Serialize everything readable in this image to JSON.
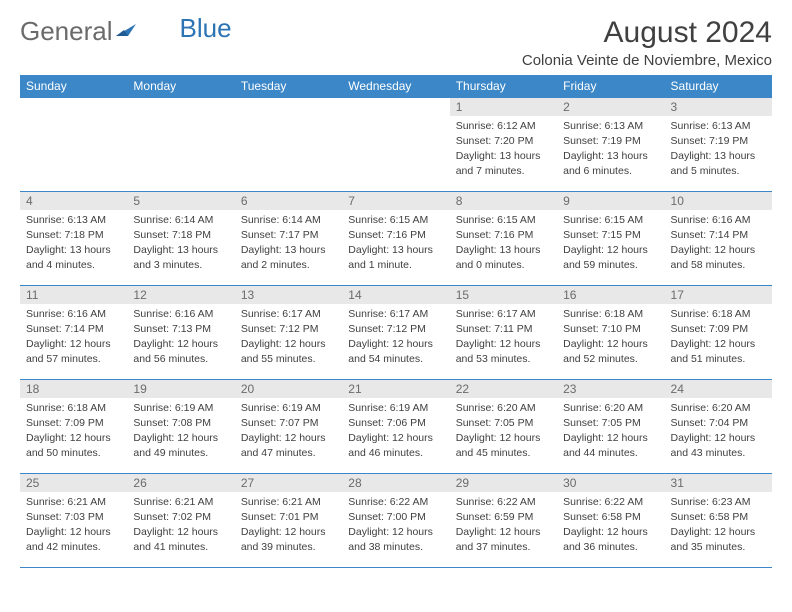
{
  "brand": {
    "part1": "General",
    "part2": "Blue"
  },
  "title": "August 2024",
  "location": "Colonia Veinte de Noviembre, Mexico",
  "colors": {
    "header_bg": "#3b87c8",
    "header_text": "#ffffff",
    "grid_border": "#3b87c8",
    "daynum_bg": "#e8e8e8",
    "daynum_text": "#6b6b6b",
    "body_text": "#404040",
    "brand_gray": "#6b6b6b",
    "brand_blue": "#2d74b5",
    "page_bg": "#ffffff"
  },
  "weekdays": [
    "Sunday",
    "Monday",
    "Tuesday",
    "Wednesday",
    "Thursday",
    "Friday",
    "Saturday"
  ],
  "cells": [
    [
      null,
      null,
      null,
      null,
      {
        "n": "1",
        "sr": "6:12 AM",
        "ss": "7:20 PM",
        "dl": "13 hours and 7 minutes."
      },
      {
        "n": "2",
        "sr": "6:13 AM",
        "ss": "7:19 PM",
        "dl": "13 hours and 6 minutes."
      },
      {
        "n": "3",
        "sr": "6:13 AM",
        "ss": "7:19 PM",
        "dl": "13 hours and 5 minutes."
      }
    ],
    [
      {
        "n": "4",
        "sr": "6:13 AM",
        "ss": "7:18 PM",
        "dl": "13 hours and 4 minutes."
      },
      {
        "n": "5",
        "sr": "6:14 AM",
        "ss": "7:18 PM",
        "dl": "13 hours and 3 minutes."
      },
      {
        "n": "6",
        "sr": "6:14 AM",
        "ss": "7:17 PM",
        "dl": "13 hours and 2 minutes."
      },
      {
        "n": "7",
        "sr": "6:15 AM",
        "ss": "7:16 PM",
        "dl": "13 hours and 1 minute."
      },
      {
        "n": "8",
        "sr": "6:15 AM",
        "ss": "7:16 PM",
        "dl": "13 hours and 0 minutes."
      },
      {
        "n": "9",
        "sr": "6:15 AM",
        "ss": "7:15 PM",
        "dl": "12 hours and 59 minutes."
      },
      {
        "n": "10",
        "sr": "6:16 AM",
        "ss": "7:14 PM",
        "dl": "12 hours and 58 minutes."
      }
    ],
    [
      {
        "n": "11",
        "sr": "6:16 AM",
        "ss": "7:14 PM",
        "dl": "12 hours and 57 minutes."
      },
      {
        "n": "12",
        "sr": "6:16 AM",
        "ss": "7:13 PM",
        "dl": "12 hours and 56 minutes."
      },
      {
        "n": "13",
        "sr": "6:17 AM",
        "ss": "7:12 PM",
        "dl": "12 hours and 55 minutes."
      },
      {
        "n": "14",
        "sr": "6:17 AM",
        "ss": "7:12 PM",
        "dl": "12 hours and 54 minutes."
      },
      {
        "n": "15",
        "sr": "6:17 AM",
        "ss": "7:11 PM",
        "dl": "12 hours and 53 minutes."
      },
      {
        "n": "16",
        "sr": "6:18 AM",
        "ss": "7:10 PM",
        "dl": "12 hours and 52 minutes."
      },
      {
        "n": "17",
        "sr": "6:18 AM",
        "ss": "7:09 PM",
        "dl": "12 hours and 51 minutes."
      }
    ],
    [
      {
        "n": "18",
        "sr": "6:18 AM",
        "ss": "7:09 PM",
        "dl": "12 hours and 50 minutes."
      },
      {
        "n": "19",
        "sr": "6:19 AM",
        "ss": "7:08 PM",
        "dl": "12 hours and 49 minutes."
      },
      {
        "n": "20",
        "sr": "6:19 AM",
        "ss": "7:07 PM",
        "dl": "12 hours and 47 minutes."
      },
      {
        "n": "21",
        "sr": "6:19 AM",
        "ss": "7:06 PM",
        "dl": "12 hours and 46 minutes."
      },
      {
        "n": "22",
        "sr": "6:20 AM",
        "ss": "7:05 PM",
        "dl": "12 hours and 45 minutes."
      },
      {
        "n": "23",
        "sr": "6:20 AM",
        "ss": "7:05 PM",
        "dl": "12 hours and 44 minutes."
      },
      {
        "n": "24",
        "sr": "6:20 AM",
        "ss": "7:04 PM",
        "dl": "12 hours and 43 minutes."
      }
    ],
    [
      {
        "n": "25",
        "sr": "6:21 AM",
        "ss": "7:03 PM",
        "dl": "12 hours and 42 minutes."
      },
      {
        "n": "26",
        "sr": "6:21 AM",
        "ss": "7:02 PM",
        "dl": "12 hours and 41 minutes."
      },
      {
        "n": "27",
        "sr": "6:21 AM",
        "ss": "7:01 PM",
        "dl": "12 hours and 39 minutes."
      },
      {
        "n": "28",
        "sr": "6:22 AM",
        "ss": "7:00 PM",
        "dl": "12 hours and 38 minutes."
      },
      {
        "n": "29",
        "sr": "6:22 AM",
        "ss": "6:59 PM",
        "dl": "12 hours and 37 minutes."
      },
      {
        "n": "30",
        "sr": "6:22 AM",
        "ss": "6:58 PM",
        "dl": "12 hours and 36 minutes."
      },
      {
        "n": "31",
        "sr": "6:23 AM",
        "ss": "6:58 PM",
        "dl": "12 hours and 35 minutes."
      }
    ]
  ],
  "labels": {
    "sunrise": "Sunrise:",
    "sunset": "Sunset:",
    "daylight": "Daylight:"
  }
}
